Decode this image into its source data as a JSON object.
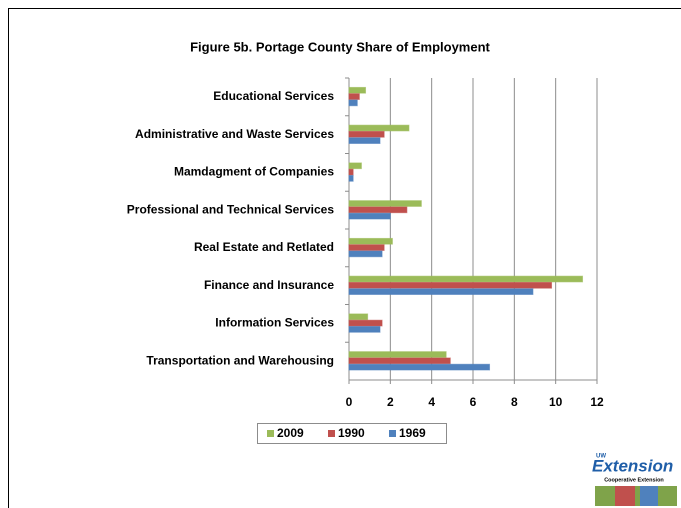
{
  "chart_data": {
    "type": "bar",
    "orientation": "horizontal",
    "title": "Figure 5b. Portage County Share of Employment",
    "categories": [
      "Educational Services",
      "Administrative and Waste Services",
      "Mamdagment of Companies",
      "Professional and Technical Services",
      "Real Estate and Retlated",
      "Finance and Insurance",
      "Information Services",
      "Transportation and Warehousing"
    ],
    "series": [
      {
        "name": "2009",
        "color": "#9bbb59",
        "values": [
          0.8,
          2.9,
          0.6,
          3.5,
          2.1,
          11.3,
          0.9,
          4.7
        ]
      },
      {
        "name": "1990",
        "color": "#c0504d",
        "values": [
          0.5,
          1.7,
          0.2,
          2.8,
          1.7,
          9.8,
          1.6,
          4.9
        ]
      },
      {
        "name": "1969",
        "color": "#4f81bd",
        "values": [
          0.4,
          1.5,
          0.2,
          2.0,
          1.6,
          8.9,
          1.5,
          6.8
        ]
      }
    ],
    "xlim": [
      0,
      12
    ],
    "xticks": [
      0,
      2,
      4,
      6,
      8,
      10,
      12
    ],
    "grid": true,
    "legend": "bottom"
  },
  "logo": {
    "top": "UW",
    "name": "Extension",
    "subtitle": "Cooperative Extension"
  }
}
